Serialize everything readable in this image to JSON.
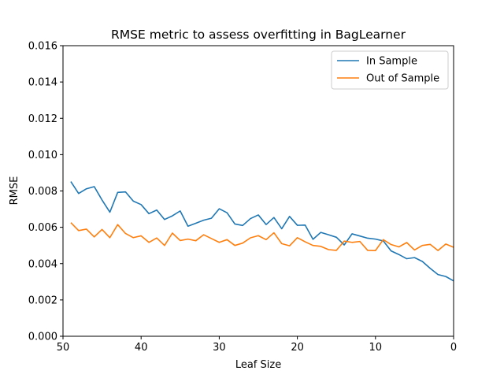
{
  "chart_data": {
    "type": "line",
    "title": "RMSE metric to assess overfitting in BagLearner",
    "xlabel": "Leaf Size",
    "ylabel": "RMSE",
    "xlim": [
      50,
      0
    ],
    "ylim": [
      0,
      0.016
    ],
    "x_inverted": true,
    "grid": false,
    "legend_position": "top-right",
    "xticks": [
      "50",
      "40",
      "30",
      "20",
      "10",
      "0"
    ],
    "yticks": [
      "0.000",
      "0.002",
      "0.004",
      "0.006",
      "0.008",
      "0.010",
      "0.012",
      "0.014",
      "0.016"
    ],
    "x": [
      49,
      48,
      47,
      46,
      45,
      44,
      43,
      42,
      41,
      40,
      39,
      38,
      37,
      36,
      35,
      34,
      33,
      32,
      31,
      30,
      29,
      28,
      27,
      26,
      25,
      24,
      23,
      22,
      21,
      20,
      19,
      18,
      17,
      16,
      15,
      14,
      13,
      12,
      11,
      10,
      9,
      8,
      7,
      6,
      5,
      4,
      3,
      2,
      1,
      0
    ],
    "series": [
      {
        "name": "In Sample",
        "color": "#1f77b4",
        "values": [
          0.00852,
          0.00786,
          0.00812,
          0.00824,
          0.0075,
          0.00683,
          0.00792,
          0.00795,
          0.00744,
          0.00725,
          0.00675,
          0.00695,
          0.00643,
          0.00663,
          0.0069,
          0.00606,
          0.00622,
          0.00639,
          0.0065,
          0.00702,
          0.0068,
          0.00618,
          0.0061,
          0.00648,
          0.00668,
          0.00615,
          0.00654,
          0.00592,
          0.0066,
          0.00611,
          0.00612,
          0.00534,
          0.00572,
          0.00559,
          0.00545,
          0.00503,
          0.00564,
          0.00552,
          0.0054,
          0.00535,
          0.00525,
          0.0047,
          0.0045,
          0.00427,
          0.00433,
          0.00412,
          0.00374,
          0.0034,
          0.00329,
          0.00305
        ]
      },
      {
        "name": "Out of Sample",
        "color": "#ff7f0e",
        "values": [
          0.00626,
          0.00582,
          0.0059,
          0.00547,
          0.00588,
          0.00543,
          0.00615,
          0.00566,
          0.00543,
          0.00553,
          0.00517,
          0.00541,
          0.005,
          0.00568,
          0.00527,
          0.00535,
          0.00526,
          0.00559,
          0.00538,
          0.00517,
          0.00532,
          0.005,
          0.00513,
          0.00542,
          0.00554,
          0.00532,
          0.0057,
          0.0051,
          0.00498,
          0.00543,
          0.0052,
          0.005,
          0.00495,
          0.00477,
          0.00473,
          0.00524,
          0.00517,
          0.00522,
          0.00473,
          0.00472,
          0.00532,
          0.00505,
          0.00492,
          0.00516,
          0.00475,
          0.005,
          0.00506,
          0.00472,
          0.00508,
          0.0049
        ]
      }
    ]
  }
}
